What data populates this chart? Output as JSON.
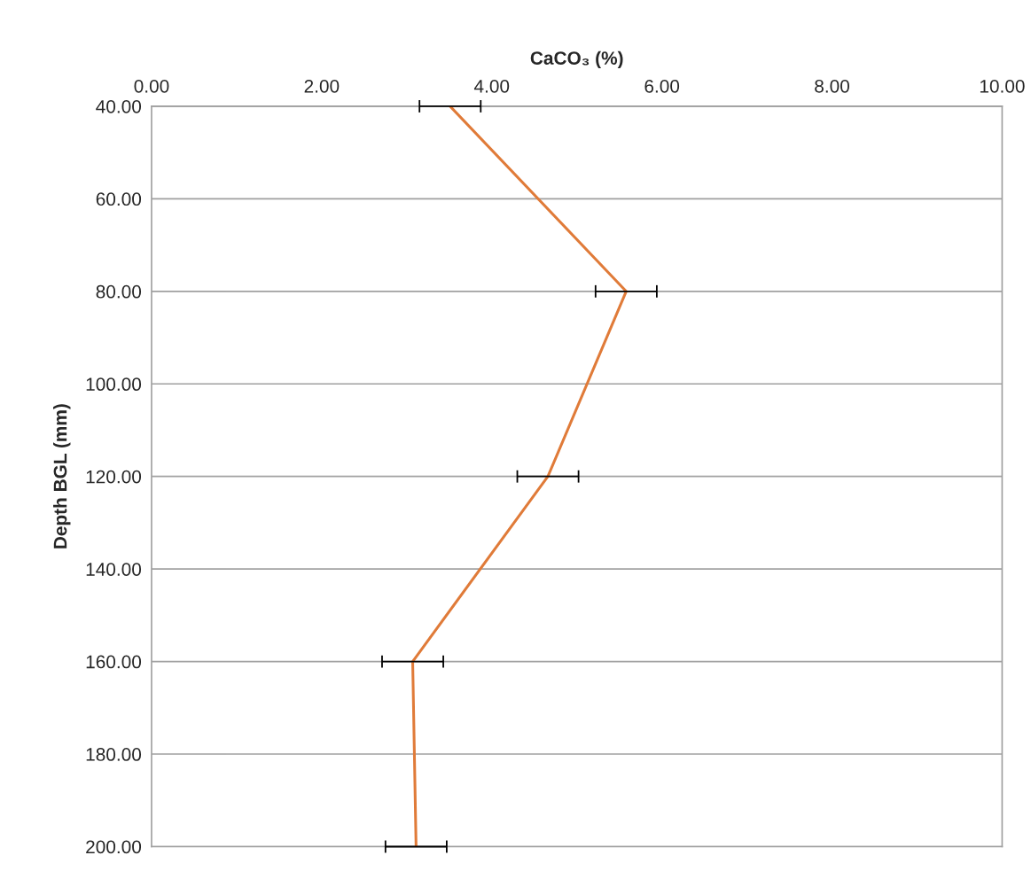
{
  "chart_data": {
    "type": "line",
    "xlabel": "CaCO₃ (%)",
    "ylabel": "Depth BGL (mm)",
    "x": [
      3.51,
      5.58,
      4.66,
      3.07,
      3.11
    ],
    "series": [
      {
        "color": "#e07b39",
        "values": [
          40,
          80,
          120,
          160,
          200
        ],
        "xerrors": [
          0.36,
          0.36,
          0.36,
          0.36,
          0.36
        ]
      }
    ],
    "xlim": [
      0,
      10
    ],
    "xticks": [
      {
        "value": 0,
        "label": "0.00"
      },
      {
        "value": 2,
        "label": "2.00"
      },
      {
        "value": 4,
        "label": "4.00"
      },
      {
        "value": 6,
        "label": "6.00"
      },
      {
        "value": 8,
        "label": "8.00"
      },
      {
        "value": 10,
        "label": "10.00"
      }
    ],
    "ylim": [
      200,
      40
    ],
    "yticks": [
      {
        "value": 40,
        "label": "40.00"
      },
      {
        "value": 60,
        "label": "60.00"
      },
      {
        "value": 80,
        "label": "80.00"
      },
      {
        "value": 100,
        "label": "100.00"
      },
      {
        "value": 120,
        "label": "120.00"
      },
      {
        "value": 140,
        "label": "140.00"
      },
      {
        "value": 160,
        "label": "160.00"
      },
      {
        "value": 180,
        "label": "180.00"
      },
      {
        "value": 200,
        "label": "200.00"
      }
    ],
    "grid": "y",
    "marker": "none",
    "line_style": "solid"
  }
}
